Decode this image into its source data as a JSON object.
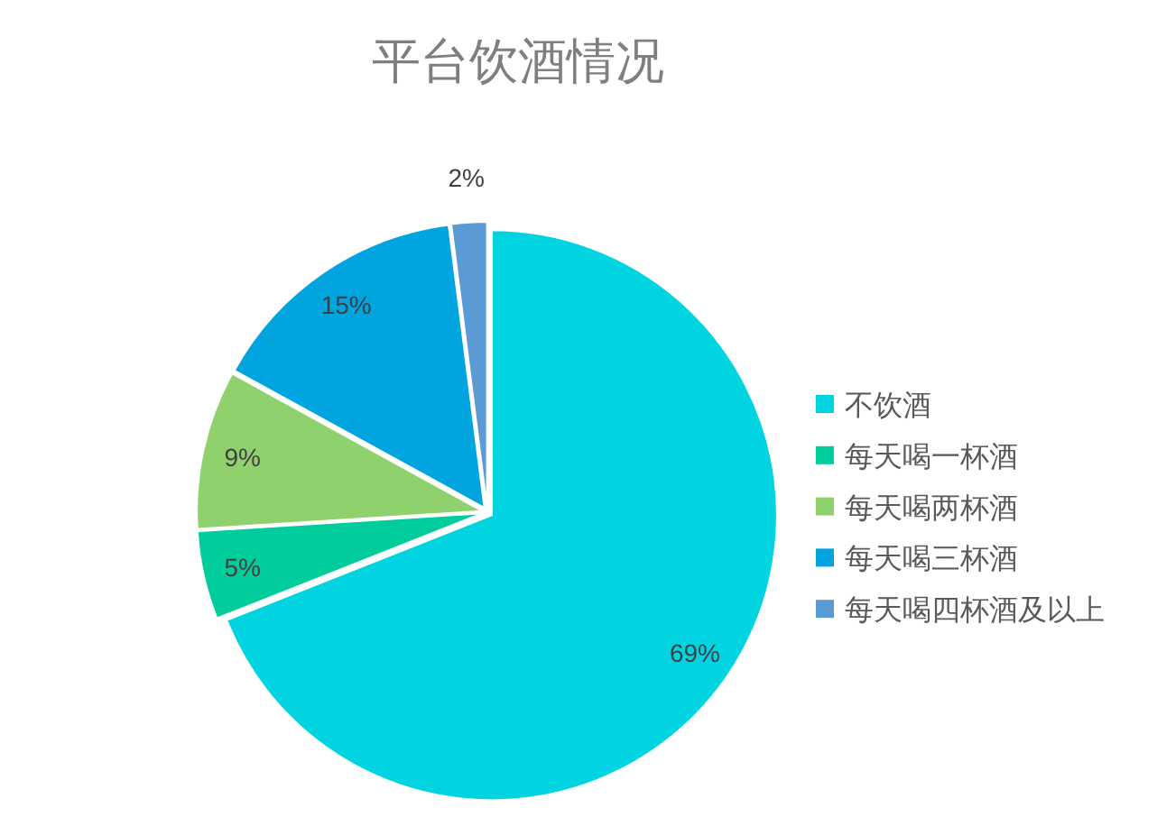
{
  "chart_data": {
    "type": "pie",
    "title": "平台饮酒情况",
    "categories": [
      "不饮酒",
      "每天喝一杯酒",
      "每天喝两杯酒",
      "每天喝三杯酒",
      "每天喝四杯酒及以上"
    ],
    "values": [
      69,
      5,
      9,
      15,
      2
    ],
    "colors": [
      "#00d4e0",
      "#00cc9c",
      "#8fd16d",
      "#00a5e0",
      "#5b9bd5"
    ],
    "value_labels": [
      "69%",
      "5%",
      "9%",
      "15%",
      "2%"
    ],
    "legend": "right"
  }
}
